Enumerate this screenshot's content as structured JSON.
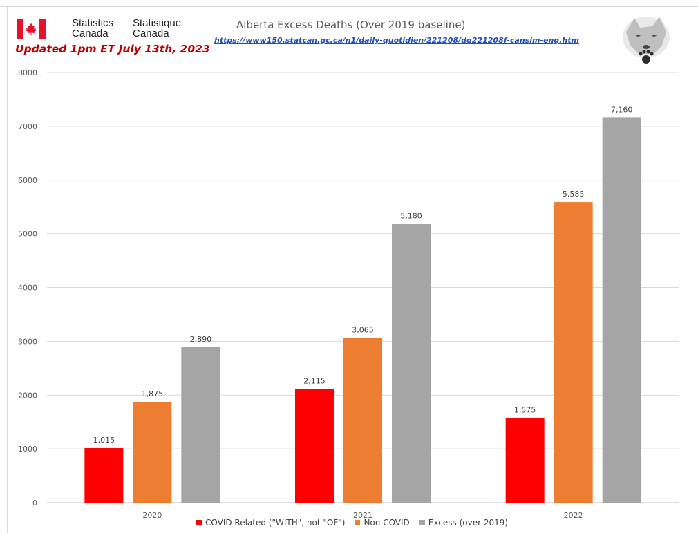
{
  "header": {
    "org_en_1": "Statistics",
    "org_en_2": "Canada",
    "org_fr_1": "Statistique",
    "org_fr_2": "Canada",
    "updated": "Updated 1pm ET July 13th, 2023",
    "title": "Alberta Excess Deaths (Over 2019 baseline)",
    "url": "https://www150.statcan.gc.ca/n1/daily-quotidien/221208/dq221208f-cansim-eng.htm",
    "logo_icon": "wolf-paw-icon",
    "flag_icon": "canada-flag-icon"
  },
  "chart_data": {
    "type": "bar",
    "title": "Alberta Excess Deaths (Over 2019 baseline)",
    "categories": [
      "2020",
      "2021",
      "2022"
    ],
    "series": [
      {
        "name": "COVID Related (\"WITH\", not \"OF\")",
        "values": [
          1015,
          2115,
          1575
        ],
        "labels": [
          "1,015",
          "2,115",
          "1,575"
        ],
        "color": "#ff0000"
      },
      {
        "name": "Non COVID",
        "values": [
          1875,
          3065,
          5585
        ],
        "labels": [
          "1,875",
          "3,065",
          "5,585"
        ],
        "color": "#ed7d31"
      },
      {
        "name": "Excess (over 2019)",
        "values": [
          2890,
          5180,
          7160
        ],
        "labels": [
          "2,890",
          "5,180",
          "7,160"
        ],
        "color": "#a5a5a5"
      }
    ],
    "ylim": [
      0,
      8000
    ],
    "yticks": [
      "0",
      "1000",
      "2000",
      "3000",
      "4000",
      "5000",
      "6000",
      "7000",
      "8000"
    ],
    "xlabel": "",
    "ylabel": "",
    "grid": true,
    "legend_position": "bottom"
  }
}
